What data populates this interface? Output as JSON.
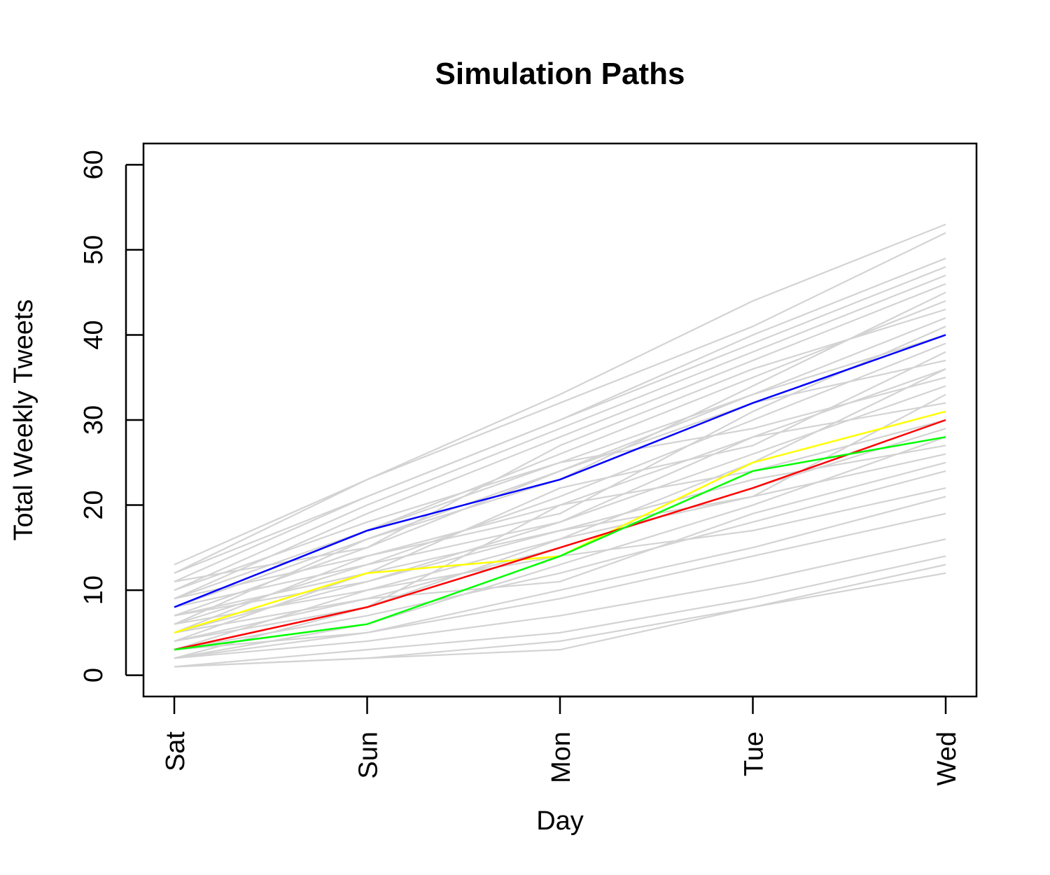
{
  "chart_data": {
    "type": "line",
    "title": "Simulation Paths",
    "xlabel": "Day",
    "ylabel": "Total Weekly Tweets",
    "categories": [
      "Sat",
      "Sun",
      "Mon",
      "Tue",
      "Wed"
    ],
    "ylim": [
      -2.5,
      62.5
    ],
    "yticks": [
      0,
      10,
      20,
      30,
      40,
      50,
      60
    ],
    "grid": false,
    "legend": "none",
    "background_paths": {
      "color": "#d3d3d3",
      "paths": [
        [
          13,
          23,
          33,
          44,
          53
        ],
        [
          12,
          23,
          32,
          41,
          52
        ],
        [
          12,
          21,
          30,
          40,
          49
        ],
        [
          11,
          21,
          30,
          39,
          48
        ],
        [
          10,
          20,
          29,
          38,
          47
        ],
        [
          9,
          19,
          28,
          37,
          46
        ],
        [
          8,
          17,
          26,
          35,
          44
        ],
        [
          7,
          15,
          24,
          33,
          42
        ],
        [
          6,
          13,
          21,
          30,
          39
        ],
        [
          5,
          11,
          18,
          26,
          34
        ],
        [
          4,
          9,
          15,
          22,
          29
        ],
        [
          3,
          7,
          12,
          18,
          24
        ],
        [
          2,
          5,
          9,
          14,
          19
        ],
        [
          2,
          4,
          7,
          11,
          16
        ],
        [
          1,
          3,
          5,
          9,
          14
        ],
        [
          1,
          2,
          4,
          8,
          13
        ],
        [
          1,
          2,
          3,
          8,
          12
        ],
        [
          2,
          6,
          13,
          20,
          28
        ],
        [
          3,
          10,
          16,
          25,
          36
        ],
        [
          4,
          8,
          20,
          28,
          32
        ],
        [
          5,
          14,
          19,
          31,
          41
        ],
        [
          6,
          10,
          14,
          17,
          22
        ],
        [
          7,
          12,
          22,
          27,
          38
        ],
        [
          8,
          16,
          23,
          34,
          45
        ],
        [
          9,
          14,
          20,
          24,
          30
        ],
        [
          10,
          18,
          25,
          29,
          35
        ],
        [
          11,
          15,
          27,
          36,
          43
        ],
        [
          3,
          5,
          10,
          15,
          21
        ],
        [
          4,
          12,
          17,
          23,
          27
        ],
        [
          5,
          9,
          11,
          19,
          25
        ],
        [
          6,
          16,
          24,
          32,
          37
        ],
        [
          2,
          8,
          16,
          21,
          33
        ],
        [
          7,
          11,
          17,
          21,
          26
        ],
        [
          9,
          17,
          25,
          33,
          40
        ],
        [
          8,
          13,
          18,
          28,
          36
        ]
      ]
    },
    "series": [
      {
        "color": "#0000ff",
        "values": [
          8,
          17,
          23,
          32,
          40
        ]
      },
      {
        "color": "#ffff00",
        "values": [
          5,
          12,
          14,
          25,
          31
        ]
      },
      {
        "color": "#ff0000",
        "values": [
          3,
          8,
          15,
          22,
          30
        ]
      },
      {
        "color": "#00ff00",
        "values": [
          3,
          6,
          14,
          24,
          28
        ]
      }
    ]
  }
}
